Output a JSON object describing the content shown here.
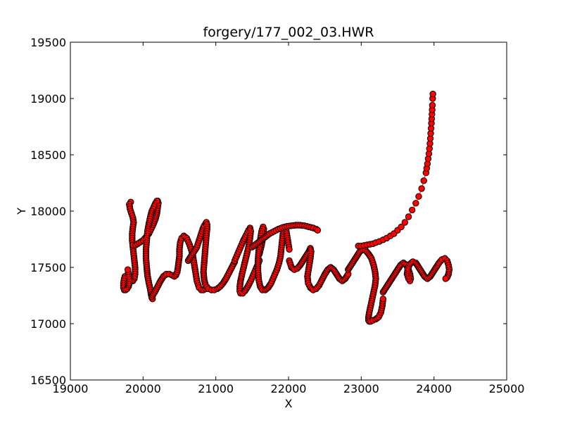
{
  "chart_data": {
    "type": "scatter",
    "title": "forgery/177_002_03.HWR",
    "xlabel": "X",
    "ylabel": "Y",
    "xlim": [
      19000,
      25000
    ],
    "ylim": [
      16500,
      19500
    ],
    "x_ticks": [
      19000,
      20000,
      21000,
      22000,
      23000,
      24000,
      25000
    ],
    "y_ticks": [
      16500,
      17000,
      17500,
      18000,
      18500,
      19000,
      19500
    ],
    "x_tick_labels": [
      "19000",
      "20000",
      "21000",
      "22000",
      "23000",
      "24000",
      "25000"
    ],
    "y_tick_labels": [
      "16500",
      "17000",
      "17500",
      "18000",
      "18500",
      "19000",
      "19500"
    ],
    "grid": false,
    "legend": "none",
    "marker": {
      "shape": "circle",
      "fill": "#ff0000",
      "edge": "#000000"
    },
    "line_color": "#ff0000",
    "series": [
      {
        "strokes": [
          {
            "x": [
              19830,
              19810,
              19820,
              19840,
              19860,
              19870,
              19860,
              19850,
              19850,
              19860,
              19870,
              19880,
              19890,
              19890,
              19880,
              19860,
              19840,
              19820,
              19800,
              19780,
              19760,
              19750,
              19740,
              19730,
              19730,
              19740,
              19760,
              19780,
              19800,
              19810,
              19810,
              19800,
              19790
            ],
            "y": [
              18080,
              18060,
              18020,
              17980,
              17940,
              17900,
              17860,
              17800,
              17740,
              17680,
              17620,
              17560,
              17500,
              17440,
              17400,
              17380,
              17380,
              17390,
              17400,
              17410,
              17420,
              17420,
              17400,
              17360,
              17320,
              17300,
              17300,
              17310,
              17330,
              17360,
              17400,
              17440,
              17480
            ]
          },
          {
            "x": [
              19860,
              19900,
              19950,
              20000,
              20040,
              20080,
              20110,
              20140,
              20170,
              20190,
              20200,
              20210,
              20200,
              20190,
              20170,
              20150,
              20120,
              20100,
              20080,
              20060,
              20050,
              20040,
              20040,
              20050,
              20060,
              20080,
              20100,
              20110,
              20120,
              20130
            ],
            "y": [
              17700,
              17700,
              17720,
              17740,
              17770,
              17800,
              17840,
              17880,
              17930,
              17980,
              18030,
              18070,
              18090,
              18090,
              18070,
              18040,
              18000,
              17950,
              17890,
              17820,
              17740,
              17660,
              17580,
              17500,
              17430,
              17360,
              17300,
              17260,
              17230,
              17220
            ]
          },
          {
            "x": [
              20120,
              20160,
              20200,
              20240,
              20280,
              20320,
              20360,
              20400,
              20430,
              20450,
              20470,
              20480,
              20490,
              20500,
              20500,
              20510,
              20530,
              20560,
              20600,
              20640,
              20680,
              20700,
              20720,
              20740,
              20770,
              20800,
              20830,
              20860,
              20880
            ],
            "y": [
              17240,
              17280,
              17330,
              17380,
              17420,
              17440,
              17440,
              17430,
              17420,
              17430,
              17460,
              17500,
              17550,
              17600,
              17660,
              17720,
              17760,
              17780,
              17760,
              17700,
              17620,
              17540,
              17460,
              17380,
              17320,
              17300,
              17300,
              17310,
              17320
            ]
          },
          {
            "x": [
              20620,
              20660,
              20700,
              20740,
              20760,
              20780,
              20800,
              20820,
              20840,
              20860,
              20870,
              20880,
              20880,
              20870,
              20860,
              20850,
              20840,
              20830,
              20840,
              20860,
              20900,
              20940,
              20980,
              21020,
              21060,
              21100,
              21140,
              21180,
              21220,
              21260
            ],
            "y": [
              17560,
              17600,
              17640,
              17680,
              17720,
              17760,
              17800,
              17840,
              17870,
              17890,
              17900,
              17880,
              17840,
              17780,
              17700,
              17620,
              17540,
              17460,
              17390,
              17340,
              17310,
              17300,
              17300,
              17310,
              17330,
              17360,
              17400,
              17450,
              17500,
              17550
            ]
          },
          {
            "x": [
              21260,
              21300,
              21340,
              21380,
              21420,
              21450,
              21470,
              21480,
              21470,
              21450,
              21420,
              21390,
              21360,
              21340,
              21330,
              21330,
              21340,
              21370,
              21400,
              21440,
              21480,
              21520,
              21560,
              21600
            ],
            "y": [
              17560,
              17620,
              17680,
              17740,
              17790,
              17830,
              17850,
              17820,
              17760,
              17680,
              17600,
              17520,
              17440,
              17380,
              17330,
              17290,
              17270,
              17270,
              17290,
              17330,
              17380,
              17440,
              17500,
              17560
            ]
          },
          {
            "x": [
              21600,
              21630,
              21650,
              21660,
              21650,
              21630,
              21610,
              21590,
              21580,
              21580,
              21590,
              21610,
              21640,
              21680,
              21720,
              21760,
              21800,
              21840,
              21870,
              21890,
              21900,
              21910,
              21920,
              21930,
              21950,
              21970,
              21990,
              22010
            ],
            "y": [
              17620,
              17700,
              17780,
              17840,
              17860,
              17820,
              17740,
              17650,
              17560,
              17470,
              17390,
              17330,
              17300,
              17300,
              17320,
              17360,
              17420,
              17480,
              17540,
              17600,
              17660,
              17720,
              17780,
              17840,
              17860,
              17820,
              17740,
              17660
            ]
          },
          {
            "x": [
              22010,
              22040,
              22080,
              22120,
              22160,
              22200,
              22240,
              22280,
              22300,
              22310,
              22300,
              22280,
              22260,
              22270,
              22300,
              22340,
              22380,
              22420,
              22460,
              22500,
              22540,
              22580,
              22620,
              22660,
              22700,
              22740,
              22780,
              22820
            ],
            "y": [
              17560,
              17500,
              17480,
              17490,
              17520,
              17560,
              17600,
              17640,
              17670,
              17640,
              17580,
              17500,
              17420,
              17360,
              17320,
              17300,
              17310,
              17340,
              17390,
              17440,
              17480,
              17500,
              17480,
              17440,
              17400,
              17380,
              17400,
              17440
            ]
          },
          {
            "x": [
              22820,
              22860,
              22900,
              22940,
              22980,
              23020,
              23060,
              23100,
              23140,
              23170,
              23190,
              23200,
              23190,
              23170,
              23150,
              23130,
              23110,
              23100,
              23100,
              23110,
              23130,
              23160,
              23200,
              23240,
              23270,
              23290,
              23300
            ],
            "y": [
              17480,
              17520,
              17560,
              17600,
              17640,
              17660,
              17650,
              17620,
              17580,
              17520,
              17460,
              17400,
              17340,
              17280,
              17220,
              17160,
              17100,
              17060,
              17030,
              17020,
              17020,
              17030,
              17040,
              17060,
              17100,
              17160,
              17220
            ]
          },
          {
            "x": [
              23300,
              23340,
              23380,
              23420,
              23460,
              23500,
              23540,
              23580,
              23620,
              23650,
              23670,
              23680,
              23670,
              23650,
              23630,
              23640,
              23670,
              23710,
              23750,
              23790,
              23830,
              23870,
              23910,
              23950,
              23990,
              24030,
              24070,
              24110,
              24150,
              24180,
              24200,
              24210,
              24200,
              24180,
              24160
            ],
            "y": [
              17280,
              17320,
              17360,
              17400,
              17440,
              17480,
              17520,
              17540,
              17520,
              17480,
              17440,
              17400,
              17380,
              17400,
              17440,
              17490,
              17530,
              17550,
              17540,
              17500,
              17460,
              17420,
              17400,
              17420,
              17460,
              17500,
              17540,
              17570,
              17580,
              17560,
              17520,
              17480,
              17440,
              17410,
              17400
            ]
          },
          {
            "x": [
              21500,
              21560,
              21620,
              21680,
              21740,
              21800,
              21860,
              21920,
              21980,
              22040,
              22100,
              22160,
              22220,
              22280,
              22340,
              22380,
              22400
            ],
            "y": [
              17680,
              17710,
              17740,
              17770,
              17800,
              17820,
              17840,
              17855,
              17865,
              17870,
              17875,
              17875,
              17870,
              17860,
              17850,
              17840,
              17830
            ]
          },
          {
            "x": [
              22960,
              23000,
              23040,
              23080,
              23120,
              23160,
              23200,
              23250,
              23300,
              23350,
              23400,
              23450,
              23500,
              23550,
              23600,
              23650,
              23700,
              23750,
              23790,
              23830,
              23860,
              23890,
              23910,
              23930,
              23945,
              23955,
              23965,
              23972,
              23978,
              23982,
              23985
            ],
            "y": [
              17690,
              17690,
              17695,
              17700,
              17705,
              17710,
              17720,
              17730,
              17745,
              17760,
              17780,
              17800,
              17830,
              17860,
              17900,
              17950,
              18010,
              18070,
              18130,
              18200,
              18270,
              18340,
              18420,
              18510,
              18600,
              18690,
              18780,
              18860,
              18940,
              19000,
              19040
            ]
          }
        ]
      }
    ]
  }
}
